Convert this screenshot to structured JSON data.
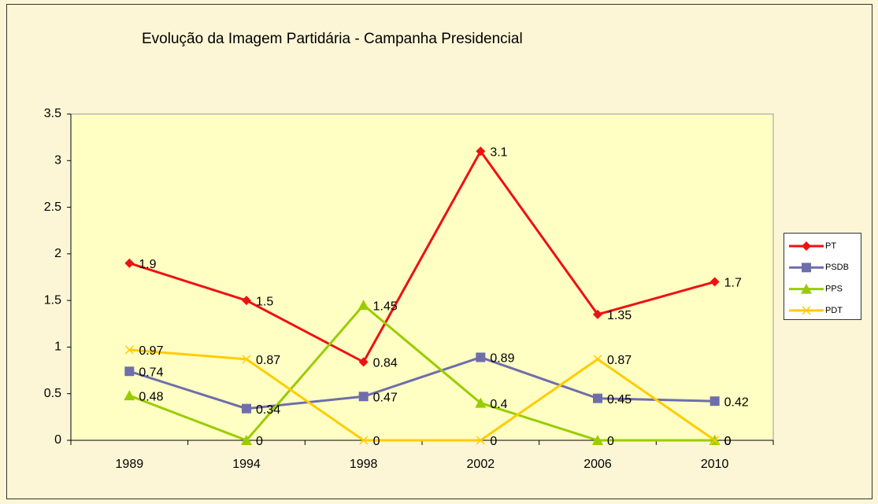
{
  "chart_data": {
    "type": "line",
    "title": "Evolução da Imagem Partidária - Campanha Presidencial",
    "categories": [
      "1989",
      "1994",
      "1998",
      "2002",
      "2006",
      "2010"
    ],
    "series": [
      {
        "name": "PT",
        "color": "#ee1111",
        "marker": "diamond",
        "values": [
          1.9,
          1.5,
          0.84,
          3.1,
          1.35,
          1.7
        ]
      },
      {
        "name": "PSDB",
        "color": "#6e6eaa",
        "marker": "square",
        "values": [
          0.74,
          0.34,
          0.47,
          0.89,
          0.45,
          0.42
        ]
      },
      {
        "name": "PPS",
        "color": "#99cc00",
        "marker": "triangle",
        "values": [
          0.48,
          0,
          1.45,
          0.4,
          0,
          0
        ]
      },
      {
        "name": "PDT",
        "color": "#ffcc00",
        "marker": "x",
        "values": [
          0.97,
          0.87,
          0,
          0,
          0.87,
          0
        ]
      }
    ],
    "ylim": [
      0,
      3.5
    ],
    "yticks": [
      0,
      0.5,
      1,
      1.5,
      2,
      2.5,
      3,
      3.5
    ],
    "grid": false,
    "legend": "right"
  }
}
